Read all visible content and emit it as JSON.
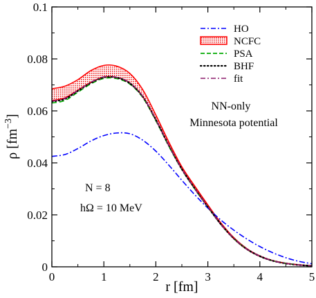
{
  "chart_data": {
    "type": "line",
    "title": "",
    "xlabel": "r  [fm]",
    "ylabel": "ρ [fm⁻³]",
    "ylabel_parts": {
      "base": "ρ [fm",
      "sup": "−3",
      "close": "]"
    },
    "xlim": [
      0,
      5
    ],
    "ylim": [
      0,
      0.1
    ],
    "xticks": [
      0,
      1,
      2,
      3,
      4,
      5
    ],
    "xtick_labels": [
      "0",
      "1",
      "2",
      "3",
      "4",
      "5"
    ],
    "yticks": [
      0,
      0.02,
      0.04,
      0.06,
      0.08,
      0.1
    ],
    "ytick_labels": [
      "0",
      "0.02",
      "0.04",
      "0.06",
      "0.08",
      "0.1"
    ],
    "grid": false,
    "legend_position": "top-right",
    "annotations": {
      "nn_only": "NN-only",
      "minnesota": "Minnesota potential",
      "n_label": "N = 8",
      "hw_label": "hΩ = 10 MeV"
    },
    "x": [
      0,
      0.25,
      0.5,
      0.75,
      1.0,
      1.25,
      1.5,
      1.75,
      2.0,
      2.25,
      2.5,
      2.75,
      3.0,
      3.25,
      3.5,
      3.75,
      4.0,
      4.25,
      4.5,
      4.75,
      5.0
    ],
    "series": [
      {
        "name": "HO",
        "color": "#0000ff",
        "dash": "dashdot",
        "values": [
          0.0425,
          0.0432,
          0.0455,
          0.0484,
          0.0505,
          0.0515,
          0.0512,
          0.0487,
          0.0445,
          0.0391,
          0.0333,
          0.0277,
          0.0226,
          0.018,
          0.0141,
          0.0107,
          0.0078,
          0.0054,
          0.0035,
          0.0021,
          0.0012
        ]
      },
      {
        "name": "NCFC",
        "color": "#ff0000",
        "band": true,
        "upper": [
          0.0685,
          0.0695,
          0.072,
          0.0755,
          0.0775,
          0.0772,
          0.0744,
          0.0681,
          0.0584,
          0.048,
          0.0385,
          0.031,
          0.0238,
          0.0169,
          0.0112,
          0.007,
          0.0042,
          0.0024,
          0.0014,
          0.0008,
          0.0004
        ],
        "lower": [
          0.064,
          0.065,
          0.068,
          0.071,
          0.073,
          0.0728,
          0.0707,
          0.0655,
          0.0565,
          0.0466,
          0.0376,
          0.03,
          0.023,
          0.0163,
          0.0108,
          0.0067,
          0.004,
          0.0023,
          0.0013,
          0.0007,
          0.0004
        ]
      },
      {
        "name": "PSA",
        "color": "#00aa00",
        "dash": "dashed",
        "values": [
          0.063,
          0.064,
          0.0672,
          0.0704,
          0.0725,
          0.0724,
          0.0703,
          0.0651,
          0.0562,
          0.0464,
          0.0374,
          0.0299,
          0.023,
          0.0163,
          0.0109,
          0.0068,
          0.004,
          0.0023,
          0.0013,
          0.0007,
          0.0003
        ]
      },
      {
        "name": "BHF",
        "color": "#000000",
        "dash": "dotted",
        "values": [
          0.0636,
          0.0646,
          0.0677,
          0.0708,
          0.0729,
          0.0728,
          0.0706,
          0.0654,
          0.0566,
          0.0467,
          0.0376,
          0.0301,
          0.0231,
          0.0164,
          0.0109,
          0.0068,
          0.0041,
          0.0023,
          0.0013,
          0.0007,
          0.0004
        ]
      },
      {
        "name": "fit",
        "color": "#8b1a6b",
        "dash": "dashdot",
        "values": [
          0.0638,
          0.0648,
          0.0679,
          0.071,
          0.0731,
          0.0729,
          0.0708,
          0.0656,
          0.0567,
          0.0468,
          0.0377,
          0.0301,
          0.0232,
          0.0164,
          0.011,
          0.0068,
          0.0041,
          0.0023,
          0.0013,
          0.0007,
          0.0004
        ]
      }
    ]
  }
}
